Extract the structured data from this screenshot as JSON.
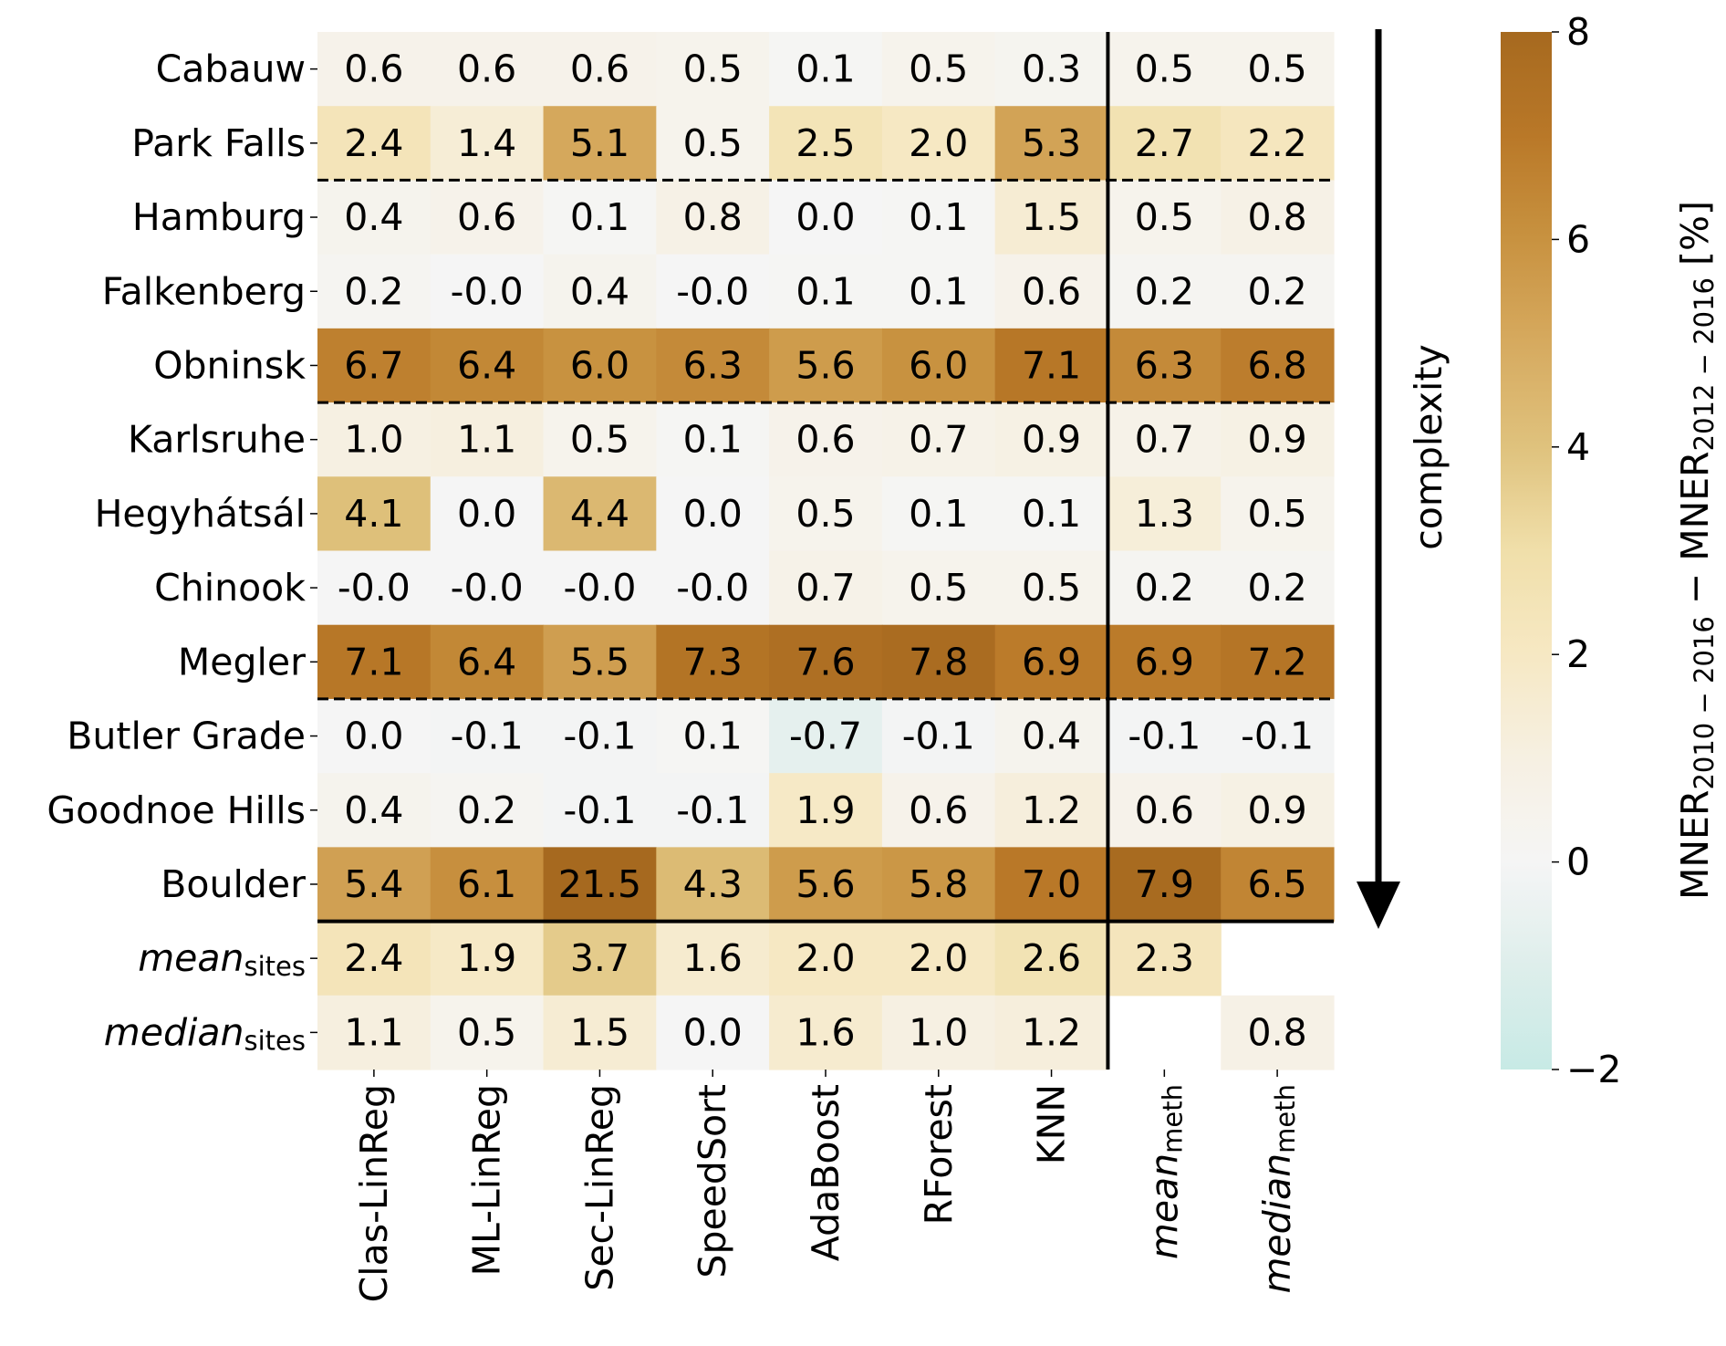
{
  "chart_data": {
    "type": "heatmap",
    "title": "",
    "xlabel": "",
    "ylabel": "",
    "rows": [
      {
        "label": "Cabauw",
        "italic": false
      },
      {
        "label": "Park Falls",
        "italic": false
      },
      {
        "label": "Hamburg",
        "italic": false
      },
      {
        "label": "Falkenberg",
        "italic": false
      },
      {
        "label": "Obninsk",
        "italic": false
      },
      {
        "label": "Karlsruhe",
        "italic": false
      },
      {
        "label": "Hegyhátsál",
        "italic": false
      },
      {
        "label": "Chinook",
        "italic": false
      },
      {
        "label": "Megler",
        "italic": false
      },
      {
        "label": "Butler Grade",
        "italic": false
      },
      {
        "label": "Goodnoe Hills",
        "italic": false
      },
      {
        "label": "Boulder",
        "italic": false
      },
      {
        "label": "mean",
        "sub": "sites",
        "italic": true
      },
      {
        "label": "median",
        "sub": "sites",
        "italic": true
      }
    ],
    "columns": [
      {
        "label": "Clas-LinReg",
        "italic": false
      },
      {
        "label": "ML-LinReg",
        "italic": false
      },
      {
        "label": "Sec-LinReg",
        "italic": false
      },
      {
        "label": "SpeedSort",
        "italic": false
      },
      {
        "label": "AdaBoost",
        "italic": false
      },
      {
        "label": "RForest",
        "italic": false
      },
      {
        "label": "KNN",
        "italic": false
      },
      {
        "label": "mean",
        "sub": "meth",
        "italic": true
      },
      {
        "label": "median",
        "sub": "meth",
        "italic": true
      }
    ],
    "values": [
      [
        "0.6",
        "0.6",
        "0.6",
        "0.5",
        "0.1",
        "0.5",
        "0.3",
        "0.5",
        "0.5"
      ],
      [
        "2.4",
        "1.4",
        "5.1",
        "0.5",
        "2.5",
        "2.0",
        "5.3",
        "2.7",
        "2.2"
      ],
      [
        "0.4",
        "0.6",
        "0.1",
        "0.8",
        "0.0",
        "0.1",
        "1.5",
        "0.5",
        "0.8"
      ],
      [
        "0.2",
        "-0.0",
        "0.4",
        "-0.0",
        "0.1",
        "0.1",
        "0.6",
        "0.2",
        "0.2"
      ],
      [
        "6.7",
        "6.4",
        "6.0",
        "6.3",
        "5.6",
        "6.0",
        "7.1",
        "6.3",
        "6.8"
      ],
      [
        "1.0",
        "1.1",
        "0.5",
        "0.1",
        "0.6",
        "0.7",
        "0.9",
        "0.7",
        "0.9"
      ],
      [
        "4.1",
        "0.0",
        "4.4",
        "0.0",
        "0.5",
        "0.1",
        "0.1",
        "1.3",
        "0.5"
      ],
      [
        "-0.0",
        "-0.0",
        "-0.0",
        "-0.0",
        "0.7",
        "0.5",
        "0.5",
        "0.2",
        "0.2"
      ],
      [
        "7.1",
        "6.4",
        "5.5",
        "7.3",
        "7.6",
        "7.8",
        "6.9",
        "6.9",
        "7.2"
      ],
      [
        "0.0",
        "-0.1",
        "-0.1",
        "0.1",
        "-0.7",
        "-0.1",
        "0.4",
        "-0.1",
        "-0.1"
      ],
      [
        "0.4",
        "0.2",
        "-0.1",
        "-0.1",
        "1.9",
        "0.6",
        "1.2",
        "0.6",
        "0.9"
      ],
      [
        "5.4",
        "6.1",
        "21.5",
        "4.3",
        "5.6",
        "5.8",
        "7.0",
        "7.9",
        "6.5"
      ],
      [
        "2.4",
        "1.9",
        "3.7",
        "1.6",
        "2.0",
        "2.0",
        "2.6",
        "2.3",
        null
      ],
      [
        "1.1",
        "0.5",
        "1.5",
        "0.0",
        "1.6",
        "1.0",
        "1.2",
        null,
        "0.8"
      ]
    ],
    "dashed_separators_after_rows": [
      "Park Falls",
      "Obninsk",
      "Megler"
    ],
    "solid_separator_after_row": "Boulder",
    "solid_separator_after_column": "KNN",
    "annotation_arrow": {
      "label": "complexity",
      "direction": "down"
    },
    "colorbar": {
      "vmin": -2,
      "vmax": 8,
      "center": 0,
      "ticks": [
        -2,
        0,
        2,
        4,
        6,
        8
      ],
      "tick_labels": [
        "−2",
        "0",
        "2",
        "4",
        "6",
        "8"
      ],
      "colormap": "BrBG_r (brown-white-teal, centered at 0)",
      "label_parts": {
        "main1": "MNER",
        "sub1": "2010 − 2016",
        "minus": " − ",
        "main2": "MNER",
        "sub2": "2012 − 2016",
        "unit": " [%]"
      }
    },
    "grid": false,
    "legend": "right (colorbar)"
  }
}
